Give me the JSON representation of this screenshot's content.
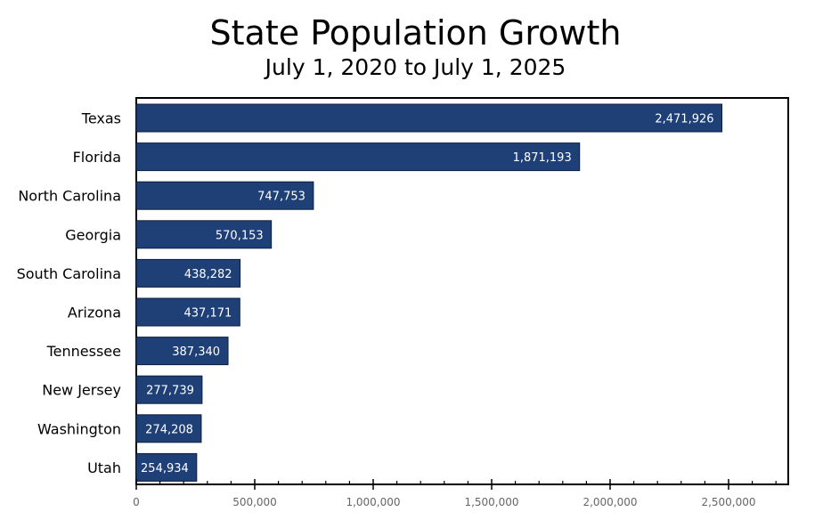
{
  "chart_data": {
    "type": "bar",
    "orientation": "horizontal",
    "title": "State Population Growth",
    "subtitle": "July 1, 2020 to July 1, 2025",
    "xlabel": "",
    "ylabel": "",
    "categories": [
      "Texas",
      "Florida",
      "North Carolina",
      "Georgia",
      "South Carolina",
      "Arizona",
      "Tennessee",
      "New Jersey",
      "Washington",
      "Utah"
    ],
    "values": [
      2471926,
      1871193,
      747753,
      570153,
      438282,
      437171,
      387340,
      277739,
      274208,
      254934
    ],
    "data_labels": [
      "2,471,926",
      "1,871,193",
      "747,753",
      "570,153",
      "438,282",
      "437,171",
      "387,340",
      "277,739",
      "274,208",
      "254,934"
    ],
    "xlim": [
      0,
      2750000
    ],
    "x_ticks": [
      0,
      500000,
      1000000,
      1500000,
      2000000,
      2500000
    ],
    "x_tick_labels": [
      "0",
      "500,000",
      "1,000,000",
      "1,500,000",
      "2,000,000",
      "2,500,000"
    ],
    "minor_tick_step": 100000,
    "grid": false,
    "legend": "none",
    "colors": {
      "bar": "#1f3f77",
      "bar_edge": "#0d1f3f",
      "label": "#ffffff",
      "tick_text": "#666666",
      "axis": "#000000"
    }
  }
}
